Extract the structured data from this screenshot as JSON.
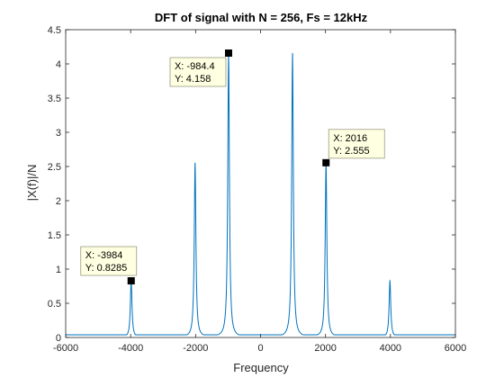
{
  "chart_data": {
    "type": "line",
    "title": "DFT of signal with N = 256, Fs = 12kHz",
    "xlabel": "Frequency",
    "ylabel": "|X(f)|/N",
    "xlim": [
      -6000,
      6000
    ],
    "ylim": [
      0,
      4.5
    ],
    "grid": false,
    "x_ticks": [
      -6000,
      -4000,
      -2000,
      0,
      2000,
      4000,
      6000
    ],
    "x_tick_labels": [
      "-6000",
      "-4000",
      "-2000",
      "0",
      "2000",
      "4000",
      "6000"
    ],
    "y_ticks": [
      0,
      0.5,
      1,
      1.5,
      2,
      2.5,
      3,
      3.5,
      4,
      4.5
    ],
    "y_tick_labels": [
      "0",
      "0.5",
      "1",
      "1.5",
      "2",
      "2.5",
      "3",
      "3.5",
      "4",
      "4.5"
    ],
    "series": [
      {
        "color": "#0072BD",
        "peaks": [
          {
            "x": -3984,
            "y": 0.8285
          },
          {
            "x": -2016,
            "y": 2.555
          },
          {
            "x": -984.4,
            "y": 4.158
          },
          {
            "x": 984.4,
            "y": 4.158
          },
          {
            "x": 2016,
            "y": 2.555
          },
          {
            "x": 3984,
            "y": 0.8285
          }
        ],
        "floor": 0.04
      }
    ],
    "datatips": [
      {
        "x": -984.4,
        "y": 4.158,
        "x_text": "X: -984.4",
        "y_text": "Y: 4.158",
        "placement": "lower-left"
      },
      {
        "x": 2016,
        "y": 2.555,
        "x_text": "X: 2016",
        "y_text": "Y: 2.555",
        "placement": "upper-right"
      },
      {
        "x": -3984,
        "y": 0.8285,
        "x_text": "X: -3984",
        "y_text": "Y: 0.8285",
        "placement": "upper-left"
      }
    ]
  }
}
